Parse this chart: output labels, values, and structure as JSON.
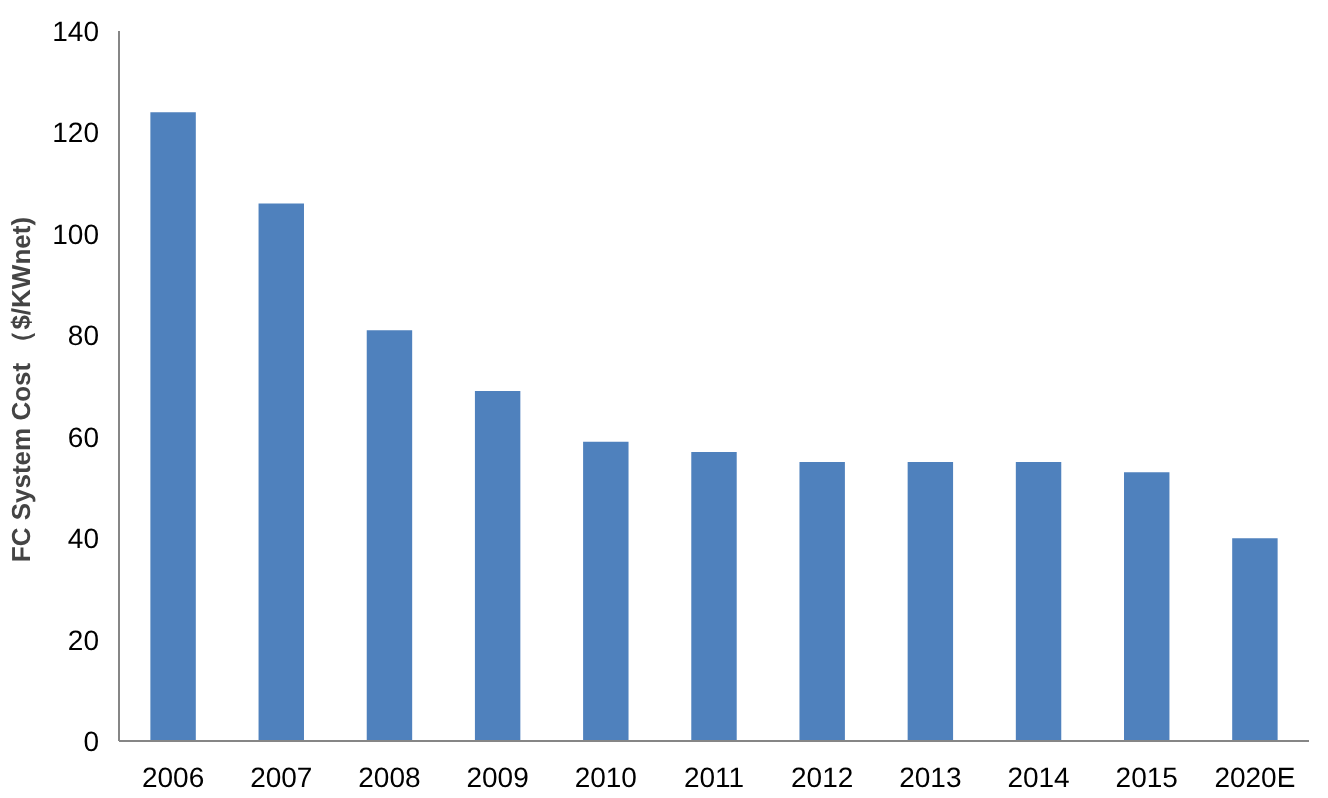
{
  "chart_data": {
    "type": "bar",
    "ylabel": "FC  System Cost （$/KWnet)",
    "categories": [
      "2006",
      "2007",
      "2008",
      "2009",
      "2010",
      "2011",
      "2012",
      "2013",
      "2014",
      "2015",
      "2020E"
    ],
    "values": [
      124,
      106,
      81,
      69,
      59,
      57,
      55,
      55,
      55,
      53,
      40
    ],
    "color": "#4f81bd",
    "ylim": [
      0,
      140
    ],
    "yticks": [
      0,
      20,
      40,
      60,
      80,
      100,
      120,
      140
    ],
    "grid": false
  }
}
